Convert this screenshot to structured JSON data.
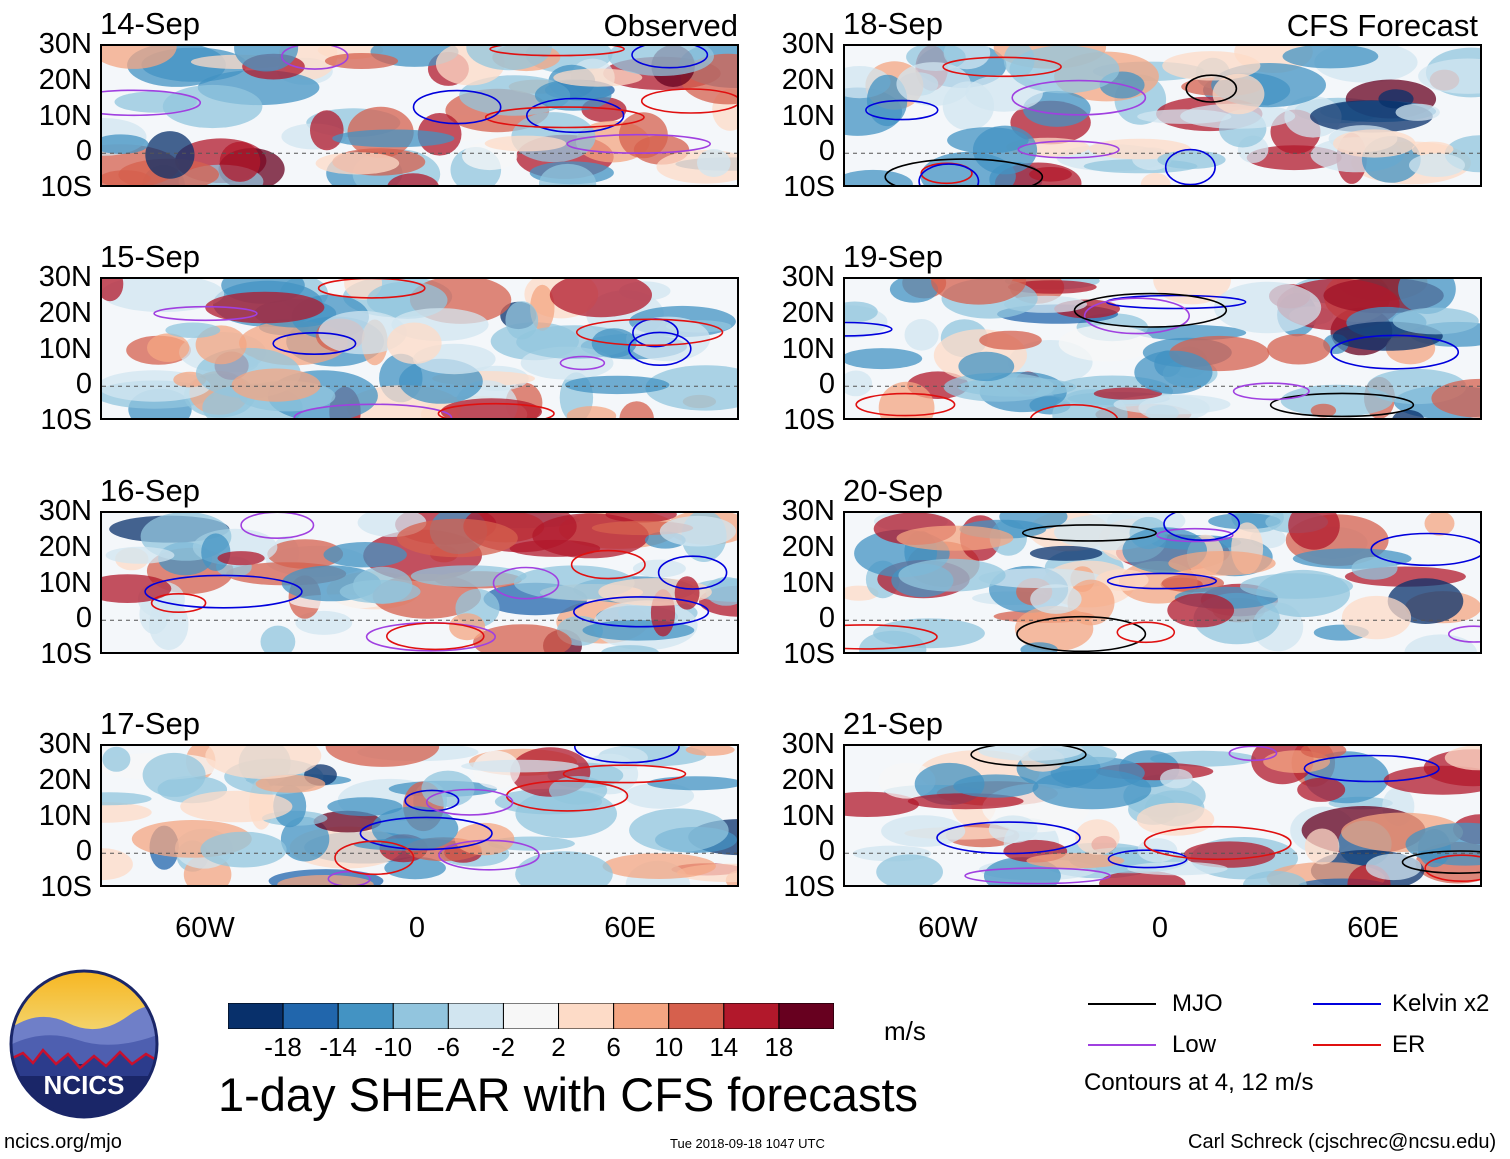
{
  "header": {
    "left_tag": "Observed",
    "right_tag": "CFS Forecast"
  },
  "columns": [
    {
      "name": "observed",
      "dates": [
        "14-Sep",
        "15-Sep",
        "16-Sep",
        "17-Sep"
      ]
    },
    {
      "name": "forecast",
      "dates": [
        "18-Sep",
        "19-Sep",
        "20-Sep",
        "21-Sep"
      ]
    }
  ],
  "lat_ticks": [
    "30N",
    "20N",
    "10N",
    "0",
    "10S"
  ],
  "lon_ticks": [
    "60W",
    "0",
    "60E"
  ],
  "colorbar": {
    "colors": [
      "#08306b",
      "#2166ac",
      "#4393c3",
      "#92c5de",
      "#d1e5f0",
      "#f7f7f7",
      "#fddbc7",
      "#f4a582",
      "#d6604d",
      "#b2182b",
      "#67001f"
    ],
    "labels": [
      "-18",
      "-14",
      "-10",
      "-6",
      "-2",
      "2",
      "6",
      "10",
      "14",
      "18"
    ],
    "units": "m/s"
  },
  "title": "1-day SHEAR with CFS forecasts",
  "legend": {
    "items": [
      {
        "label": "MJO",
        "color": "#000000"
      },
      {
        "label": "Kelvin x2",
        "color": "#0000dd"
      },
      {
        "label": "Low",
        "color": "#a040e0"
      },
      {
        "label": "ER",
        "color": "#e01010"
      }
    ],
    "note": "Contours at 4, 12 m/s"
  },
  "logo": {
    "text": "NCICS"
  },
  "footer": {
    "url": "ncics.org/mjo",
    "timestamp": "Tue 2018-09-18 1047 UTC",
    "credit": "Carl Schreck (cjschrec@ncsu.edu)"
  }
}
